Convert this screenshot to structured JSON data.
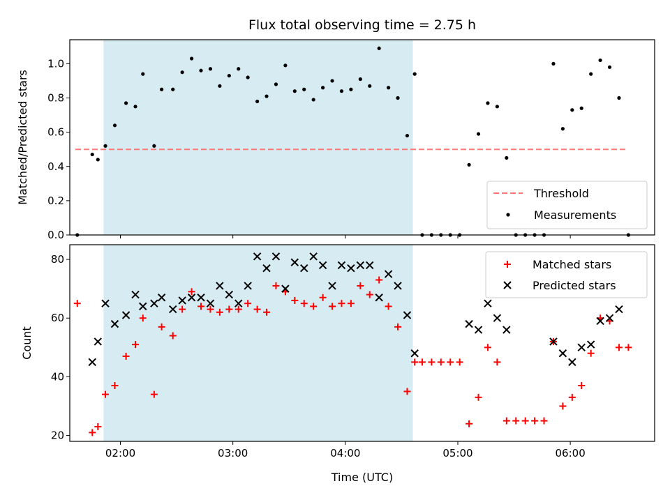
{
  "chart_data": [
    {
      "type": "scatter",
      "title": "Flux total observing time = 2.75 h",
      "xlabel": "",
      "ylabel": "Matched/Predicted stars",
      "xlim": [
        "01:33",
        "06:45"
      ],
      "ylim": [
        0,
        1.14
      ],
      "yticks": [
        "0.0",
        "0.2",
        "0.4",
        "0.6",
        "0.8",
        "1.0"
      ],
      "shaded_interval": [
        "01:51",
        "04:36"
      ],
      "threshold": {
        "name": "Threshold",
        "value": 0.5,
        "x_range": [
          "01:36",
          "06:30"
        ],
        "color": "#ff7777",
        "style": "dashed"
      },
      "series": [
        {
          "name": "Measurements",
          "marker": "dot",
          "color": "#000000",
          "points": [
            [
              "01:37",
              0.0
            ],
            [
              "01:45",
              0.47
            ],
            [
              "01:48",
              0.44
            ],
            [
              "01:52",
              0.52
            ],
            [
              "01:57",
              0.64
            ],
            [
              "02:03",
              0.77
            ],
            [
              "02:08",
              0.75
            ],
            [
              "02:12",
              0.94
            ],
            [
              "02:18",
              0.52
            ],
            [
              "02:22",
              0.85
            ],
            [
              "02:28",
              0.85
            ],
            [
              "02:33",
              0.95
            ],
            [
              "02:38",
              1.03
            ],
            [
              "02:43",
              0.96
            ],
            [
              "02:48",
              0.97
            ],
            [
              "02:53",
              0.87
            ],
            [
              "02:58",
              0.93
            ],
            [
              "03:03",
              0.97
            ],
            [
              "03:08",
              0.92
            ],
            [
              "03:13",
              0.78
            ],
            [
              "03:18",
              0.81
            ],
            [
              "03:23",
              0.88
            ],
            [
              "03:28",
              0.99
            ],
            [
              "03:33",
              0.84
            ],
            [
              "03:38",
              0.85
            ],
            [
              "03:43",
              0.79
            ],
            [
              "03:48",
              0.86
            ],
            [
              "03:53",
              0.9
            ],
            [
              "03:58",
              0.84
            ],
            [
              "04:03",
              0.85
            ],
            [
              "04:08",
              0.91
            ],
            [
              "04:13",
              0.87
            ],
            [
              "04:18",
              1.09
            ],
            [
              "04:23",
              0.86
            ],
            [
              "04:28",
              0.8
            ],
            [
              "04:33",
              0.58
            ],
            [
              "04:37",
              0.94
            ],
            [
              "04:41",
              0.0
            ],
            [
              "04:46",
              0.0
            ],
            [
              "04:51",
              0.0
            ],
            [
              "04:56",
              0.0
            ],
            [
              "05:01",
              0.0
            ],
            [
              "05:06",
              0.41
            ],
            [
              "05:11",
              0.59
            ],
            [
              "05:16",
              0.77
            ],
            [
              "05:21",
              0.75
            ],
            [
              "05:26",
              0.45
            ],
            [
              "05:31",
              0.0
            ],
            [
              "05:36",
              0.0
            ],
            [
              "05:41",
              0.0
            ],
            [
              "05:46",
              0.0
            ],
            [
              "05:51",
              1.0
            ],
            [
              "05:56",
              0.62
            ],
            [
              "06:01",
              0.73
            ],
            [
              "06:06",
              0.74
            ],
            [
              "06:11",
              0.94
            ],
            [
              "06:16",
              1.02
            ],
            [
              "06:21",
              0.98
            ],
            [
              "06:26",
              0.8
            ],
            [
              "06:31",
              0.0
            ]
          ]
        }
      ],
      "legend": {
        "position": "lower-right",
        "entries": [
          "Threshold",
          "Measurements"
        ]
      }
    },
    {
      "type": "scatter",
      "title": "",
      "xlabel": "Time (UTC)",
      "ylabel": "Count",
      "xlim": [
        "01:33",
        "06:45"
      ],
      "xticks": [
        "02:00",
        "03:00",
        "04:00",
        "05:00",
        "06:00"
      ],
      "ylim": [
        18,
        85
      ],
      "yticks": [
        "20",
        "40",
        "60",
        "80"
      ],
      "shaded_interval": [
        "01:51",
        "04:36"
      ],
      "series": [
        {
          "name": "Matched stars",
          "marker": "plus",
          "color": "#ff0000",
          "points": [
            [
              "01:37",
              65
            ],
            [
              "01:45",
              21
            ],
            [
              "01:48",
              23
            ],
            [
              "01:52",
              34
            ],
            [
              "01:57",
              37
            ],
            [
              "02:03",
              47
            ],
            [
              "02:08",
              51
            ],
            [
              "02:12",
              60
            ],
            [
              "02:18",
              34
            ],
            [
              "02:22",
              57
            ],
            [
              "02:28",
              54
            ],
            [
              "02:33",
              63
            ],
            [
              "02:38",
              69
            ],
            [
              "02:43",
              64
            ],
            [
              "02:48",
              63
            ],
            [
              "02:53",
              62
            ],
            [
              "02:58",
              63
            ],
            [
              "03:03",
              63
            ],
            [
              "03:08",
              65
            ],
            [
              "03:13",
              63
            ],
            [
              "03:18",
              62
            ],
            [
              "03:23",
              71
            ],
            [
              "03:28",
              69
            ],
            [
              "03:33",
              66
            ],
            [
              "03:38",
              65
            ],
            [
              "03:43",
              64
            ],
            [
              "03:48",
              67
            ],
            [
              "03:53",
              64
            ],
            [
              "03:58",
              65
            ],
            [
              "04:03",
              65
            ],
            [
              "04:08",
              71
            ],
            [
              "04:13",
              68
            ],
            [
              "04:18",
              73
            ],
            [
              "04:23",
              64
            ],
            [
              "04:28",
              57
            ],
            [
              "04:33",
              35
            ],
            [
              "04:37",
              45
            ],
            [
              "04:41",
              45
            ],
            [
              "04:46",
              45
            ],
            [
              "04:51",
              45
            ],
            [
              "04:56",
              45
            ],
            [
              "05:01",
              45
            ],
            [
              "05:06",
              24
            ],
            [
              "05:11",
              33
            ],
            [
              "05:16",
              50
            ],
            [
              "05:21",
              45
            ],
            [
              "05:26",
              25
            ],
            [
              "05:31",
              25
            ],
            [
              "05:36",
              25
            ],
            [
              "05:41",
              25
            ],
            [
              "05:46",
              25
            ],
            [
              "05:51",
              52
            ],
            [
              "05:56",
              30
            ],
            [
              "06:01",
              33
            ],
            [
              "06:06",
              37
            ],
            [
              "06:11",
              48
            ],
            [
              "06:16",
              60
            ],
            [
              "06:21",
              59
            ],
            [
              "06:26",
              50
            ],
            [
              "06:31",
              50
            ]
          ]
        },
        {
          "name": "Predicted stars",
          "marker": "x",
          "color": "#000000",
          "points": [
            [
              "01:45",
              45
            ],
            [
              "01:48",
              52
            ],
            [
              "01:52",
              65
            ],
            [
              "01:57",
              58
            ],
            [
              "02:03",
              61
            ],
            [
              "02:08",
              68
            ],
            [
              "02:12",
              64
            ],
            [
              "02:18",
              65
            ],
            [
              "02:22",
              67
            ],
            [
              "02:28",
              63
            ],
            [
              "02:33",
              66
            ],
            [
              "02:38",
              67
            ],
            [
              "02:43",
              67
            ],
            [
              "02:48",
              65
            ],
            [
              "02:53",
              71
            ],
            [
              "02:58",
              68
            ],
            [
              "03:03",
              65
            ],
            [
              "03:08",
              71
            ],
            [
              "03:13",
              81
            ],
            [
              "03:18",
              77
            ],
            [
              "03:23",
              81
            ],
            [
              "03:28",
              70
            ],
            [
              "03:33",
              79
            ],
            [
              "03:38",
              77
            ],
            [
              "03:43",
              81
            ],
            [
              "03:48",
              78
            ],
            [
              "03:53",
              71
            ],
            [
              "03:58",
              78
            ],
            [
              "04:03",
              77
            ],
            [
              "04:08",
              78
            ],
            [
              "04:13",
              78
            ],
            [
              "04:18",
              67
            ],
            [
              "04:23",
              75
            ],
            [
              "04:28",
              71
            ],
            [
              "04:33",
              61
            ],
            [
              "04:37",
              48
            ],
            [
              "05:06",
              58
            ],
            [
              "05:11",
              56
            ],
            [
              "05:16",
              65
            ],
            [
              "05:21",
              60
            ],
            [
              "05:26",
              56
            ],
            [
              "05:51",
              52
            ],
            [
              "05:56",
              48
            ],
            [
              "06:01",
              45
            ],
            [
              "06:06",
              50
            ],
            [
              "06:11",
              51
            ],
            [
              "06:16",
              59
            ],
            [
              "06:21",
              60
            ],
            [
              "06:26",
              63
            ]
          ]
        }
      ],
      "legend": {
        "position": "top-right",
        "entries": [
          "Matched stars",
          "Predicted stars"
        ]
      }
    }
  ],
  "colors": {
    "shade": "#add8e6",
    "threshold": "#ff7777",
    "matched": "#ff0000",
    "predicted": "#000000"
  }
}
